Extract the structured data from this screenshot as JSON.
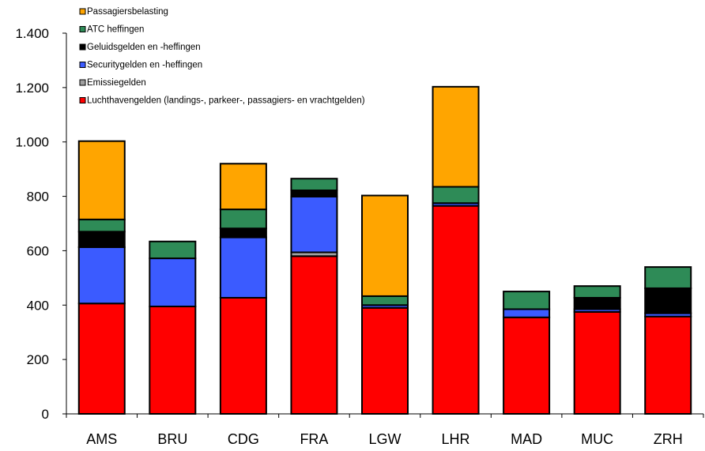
{
  "chart_data": {
    "type": "bar",
    "stacked": true,
    "categories": [
      "AMS",
      "BRU",
      "CDG",
      "FRA",
      "LGW",
      "LHR",
      "MAD",
      "MUC",
      "ZRH"
    ],
    "ylim": [
      0,
      1400
    ],
    "yticks": [
      0,
      200,
      400,
      600,
      800,
      1000,
      1200,
      1400
    ],
    "ytick_labels": [
      "0",
      "200",
      "400",
      "600",
      "800",
      "1.000",
      "1.200",
      "1.400"
    ],
    "grid": false,
    "legend_position": "top-left",
    "series": [
      {
        "name": "Luchthavengelden (landings-, parkeer-, passagiers- en vrachtgelden)",
        "color": "#ff0000",
        "values": [
          406,
          395,
          427,
          580,
          390,
          765,
          355,
          375,
          358
        ]
      },
      {
        "name": "Emissiegelden",
        "color": "#a0a0a0",
        "values": [
          0,
          0,
          0,
          14,
          0,
          0,
          0,
          0,
          0
        ]
      },
      {
        "name": "Securitygelden en -heffingen",
        "color": "#3b5bff",
        "values": [
          207,
          177,
          222,
          205,
          10,
          10,
          30,
          10,
          12
        ]
      },
      {
        "name": "Geluidsgelden en -heffingen",
        "color": "#000000",
        "values": [
          57,
          0,
          33,
          23,
          0,
          0,
          0,
          42,
          92
        ]
      },
      {
        "name": "ATC heffingen",
        "color": "#2e8b57",
        "values": [
          45,
          62,
          70,
          43,
          33,
          60,
          65,
          43,
          78
        ]
      },
      {
        "name": "Passagiersbelasting",
        "color": "#ffa500",
        "values": [
          288,
          0,
          168,
          0,
          370,
          368,
          0,
          0,
          0
        ]
      }
    ]
  }
}
